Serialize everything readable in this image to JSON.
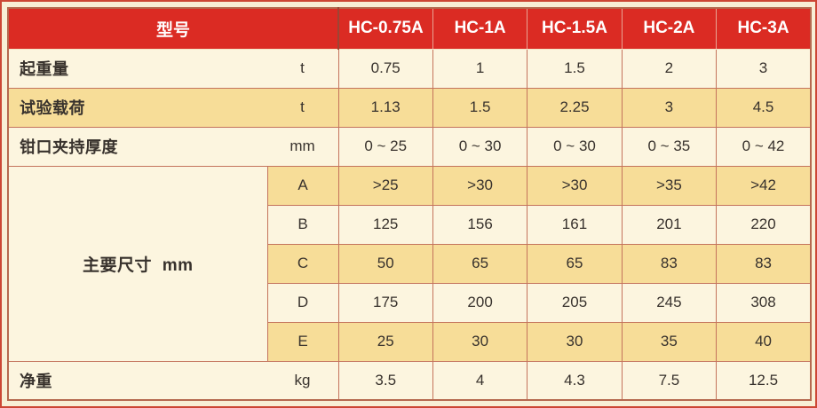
{
  "colors": {
    "page_background": "#F8EFD6",
    "page_border_red": "#CC4634",
    "header_red": "#DB2B23",
    "header_text": "#FFFFFF",
    "row_cream": "#FCF5DF",
    "row_gold": "#F7DD98",
    "grid_line": "#C4735C",
    "table_border": "#B5694F",
    "text": "#38322D"
  },
  "table": {
    "header": {
      "label": "型号",
      "models": [
        "HC-0.75A",
        "HC-1A",
        "HC-1.5A",
        "HC-2A",
        "HC-3A"
      ]
    },
    "rows": [
      {
        "label": "起重量",
        "unit": "t",
        "values": [
          "0.75",
          "1",
          "1.5",
          "2",
          "3"
        ]
      },
      {
        "label": "试验载荷",
        "unit": "t",
        "values": [
          "1.13",
          "1.5",
          "2.25",
          "3",
          "4.5"
        ]
      },
      {
        "label": "钳口夹持厚度",
        "unit": "mm",
        "values": [
          "0 ~ 25",
          "0 ~ 30",
          "0 ~ 30",
          "0 ~ 35",
          "0 ~ 42"
        ]
      }
    ],
    "dimensions": {
      "label": "主要尺寸 mm",
      "rows": [
        {
          "name": "A",
          "values": [
            ">25",
            ">30",
            ">30",
            ">35",
            ">42"
          ]
        },
        {
          "name": "B",
          "values": [
            "125",
            "156",
            "161",
            "201",
            "220"
          ]
        },
        {
          "name": "C",
          "values": [
            "50",
            "65",
            "65",
            "83",
            "83"
          ]
        },
        {
          "name": "D",
          "values": [
            "175",
            "200",
            "205",
            "245",
            "308"
          ]
        },
        {
          "name": "E",
          "values": [
            "25",
            "30",
            "30",
            "35",
            "40"
          ]
        }
      ]
    },
    "footer_row": {
      "label": "净重",
      "unit": "kg",
      "values": [
        "3.5",
        "4",
        "4.3",
        "7.5",
        "12.5"
      ]
    }
  }
}
